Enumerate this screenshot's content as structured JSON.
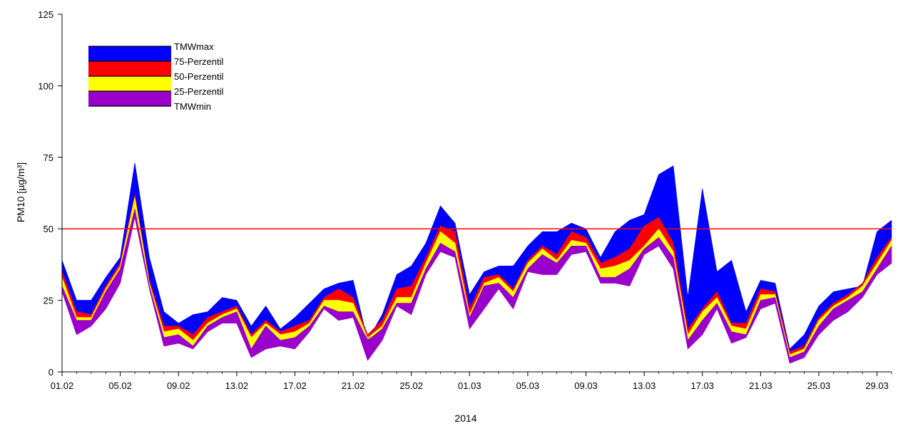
{
  "chart_data": {
    "type": "area",
    "title": "",
    "xlabel": "2014",
    "ylabel": "PM10 [µg/m³]",
    "ylim": [
      0,
      125
    ],
    "yticks": [
      0,
      25,
      50,
      75,
      100,
      125
    ],
    "xtick_labels": [
      "01.02",
      "05.02",
      "09.02",
      "13.02",
      "17.02",
      "21.02",
      "25.02",
      "01.03",
      "05.03",
      "09.03",
      "13.03",
      "17.03",
      "21.03",
      "25.03",
      "29.03"
    ],
    "x_start": "01.02.2014",
    "x_end": "30.03.2014",
    "limit_line": {
      "value": 50,
      "color": "#ff0000"
    },
    "legend_position": "top-left",
    "legend": [
      "TMWmax",
      "75-Perzentil",
      "50-Perzentil",
      "25-Perzentil",
      "TMWmin"
    ],
    "colors": {
      "max_band": "#0000ff",
      "p75_band": "#ff0000",
      "p50_band": "#ffff00",
      "p25_band": "#9900cc",
      "limit": "#ff0000"
    },
    "series": [
      {
        "name": "TMWmax",
        "values": [
          39,
          25,
          25,
          33,
          40,
          73,
          40,
          21,
          17,
          20,
          21,
          26,
          25,
          16,
          23,
          15,
          19,
          24,
          29,
          31,
          32,
          11,
          20,
          34,
          37,
          45,
          58,
          52,
          27,
          35,
          37,
          37,
          44,
          49,
          49,
          52,
          50,
          40,
          49,
          53,
          55,
          69,
          72,
          26,
          64,
          35,
          39,
          21,
          32,
          31,
          8,
          13,
          23,
          28,
          29,
          30,
          49,
          53
        ]
      },
      {
        "name": "75-Perzentil",
        "values": [
          35,
          21,
          20,
          30,
          38,
          62,
          32,
          16,
          16,
          13,
          19,
          21,
          23,
          13,
          18,
          14,
          16,
          18,
          26,
          29,
          26,
          13,
          18,
          29,
          30,
          40,
          51,
          49,
          22,
          33,
          34,
          29,
          39,
          44,
          41,
          49,
          47,
          38,
          40,
          43,
          51,
          54,
          45,
          15,
          22,
          28,
          17,
          17,
          29,
          28,
          7,
          9,
          19,
          24,
          27,
          31,
          40,
          47
        ]
      },
      {
        "name": "50-Perzentil",
        "values": [
          33,
          19,
          19,
          29,
          37,
          61,
          31,
          14,
          15,
          11,
          17,
          20,
          22,
          12,
          17,
          13,
          14,
          17,
          25,
          25,
          24,
          12,
          16,
          26,
          26,
          38,
          49,
          45,
          20,
          31,
          33,
          28,
          38,
          43,
          39,
          46,
          45,
          36,
          37,
          39,
          44,
          50,
          42,
          13,
          21,
          26,
          16,
          15,
          27,
          27,
          6,
          8,
          18,
          23,
          26,
          30,
          38,
          46
        ]
      },
      {
        "name": "25-Perzentil",
        "values": [
          30,
          18,
          18,
          28,
          36,
          57,
          30,
          12,
          13,
          9,
          16,
          19,
          21,
          8,
          16,
          11,
          12,
          16,
          23,
          21,
          21,
          11,
          15,
          24,
          24,
          36,
          45,
          42,
          19,
          30,
          31,
          26,
          36,
          41,
          38,
          44,
          44,
          33,
          33,
          36,
          43,
          47,
          40,
          11,
          18,
          24,
          14,
          13,
          25,
          26,
          5,
          7,
          16,
          22,
          25,
          28,
          36,
          44
        ]
      },
      {
        "name": "TMWmin",
        "values": [
          28,
          13,
          16,
          22,
          31,
          54,
          29,
          9,
          10,
          8,
          14,
          17,
          17,
          5,
          8,
          9,
          8,
          14,
          22,
          18,
          19,
          4,
          11,
          23,
          20,
          34,
          42,
          40,
          15,
          22,
          29,
          22,
          35,
          34,
          34,
          41,
          42,
          31,
          31,
          30,
          41,
          44,
          36,
          8,
          13,
          22,
          10,
          12,
          22,
          24,
          3,
          5,
          13,
          18,
          21,
          26,
          34,
          38
        ]
      }
    ]
  }
}
